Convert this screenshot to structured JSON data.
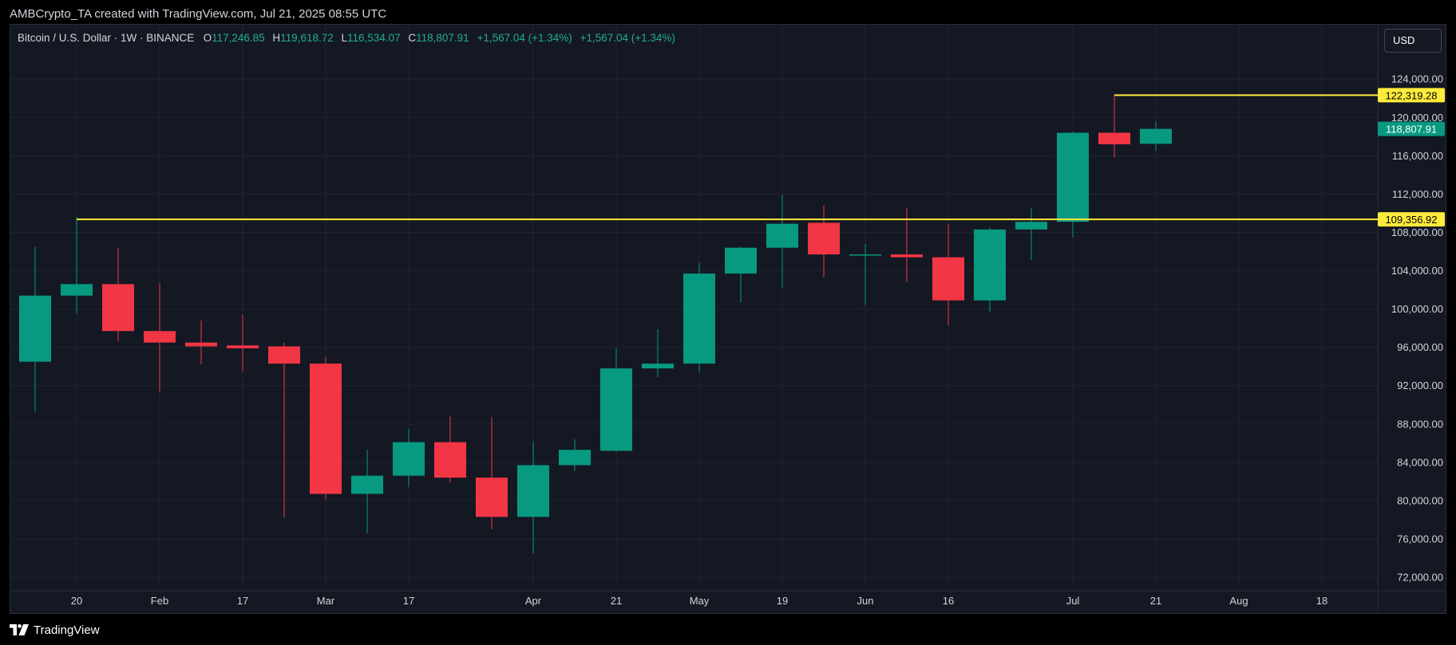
{
  "caption": "AMBCrypto_TA created with TradingView.com, Jul 21, 2025 08:55 UTC",
  "legend": {
    "symbol": "Bitcoin / U.S. Dollar · 1W · BINANCE",
    "o_label": "O",
    "o_value": "117,246.85",
    "h_label": "H",
    "h_value": "119,618.72",
    "l_label": "L",
    "l_value": "116,534.07",
    "c_label": "C",
    "c_value": "118,807.91",
    "change1": "+1,567.04 (+1.34%)",
    "change2": "+1,567.04 (+1.34%)"
  },
  "currency": "USD",
  "brand": "TradingView",
  "colors": {
    "up": "#089981",
    "down": "#f23645",
    "level_line": "#ffeb3b",
    "background": "#141823",
    "grid": "#1f2430",
    "text": "#d1d4dc"
  },
  "chart_data": {
    "type": "candlestick",
    "title": "Bitcoin / U.S. Dollar · 1W · BINANCE",
    "ylim": [
      70000,
      128000
    ],
    "y_ticks": [
      72000,
      76000,
      80000,
      84000,
      88000,
      92000,
      96000,
      100000,
      104000,
      108000,
      112000,
      116000,
      120000,
      124000
    ],
    "y_tick_labels": [
      "72,000.00",
      "76,000.00",
      "80,000.00",
      "84,000.00",
      "88,000.00",
      "92,000.00",
      "96,000.00",
      "100,000.00",
      "104,000.00",
      "108,000.00",
      "112,000.00",
      "116,000.00",
      "120,000.00",
      "124,000.00"
    ],
    "x_ticks": [
      {
        "i": 1,
        "label": "20"
      },
      {
        "i": 3,
        "label": "Feb"
      },
      {
        "i": 5,
        "label": "17"
      },
      {
        "i": 7,
        "label": "Mar"
      },
      {
        "i": 9,
        "label": "17"
      },
      {
        "i": 12,
        "label": "Apr"
      },
      {
        "i": 14,
        "label": "21"
      },
      {
        "i": 16,
        "label": "May"
      },
      {
        "i": 18,
        "label": "19"
      },
      {
        "i": 20,
        "label": "Jun"
      },
      {
        "i": 22,
        "label": "16"
      },
      {
        "i": 25,
        "label": "Jul"
      },
      {
        "i": 27,
        "label": "21"
      },
      {
        "i": 29,
        "label": "Aug"
      },
      {
        "i": 31,
        "label": "18"
      }
    ],
    "grid": true,
    "candles": [
      {
        "o": 94500,
        "h": 106500,
        "l": 89300,
        "c": 101400
      },
      {
        "o": 101400,
        "h": 109600,
        "l": 99500,
        "c": 102600
      },
      {
        "o": 102600,
        "h": 106400,
        "l": 96600,
        "c": 97700
      },
      {
        "o": 97700,
        "h": 102700,
        "l": 91300,
        "c": 96500
      },
      {
        "o": 96500,
        "h": 98800,
        "l": 94200,
        "c": 96100
      },
      {
        "o": 96200,
        "h": 99400,
        "l": 93500,
        "c": 95900
      },
      {
        "o": 96100,
        "h": 96500,
        "l": 78200,
        "c": 94300
      },
      {
        "o": 94300,
        "h": 95000,
        "l": 80100,
        "c": 80700
      },
      {
        "o": 80700,
        "h": 85300,
        "l": 76600,
        "c": 82600
      },
      {
        "o": 82600,
        "h": 87500,
        "l": 81400,
        "c": 86100
      },
      {
        "o": 86100,
        "h": 88800,
        "l": 81900,
        "c": 82400
      },
      {
        "o": 82400,
        "h": 88700,
        "l": 77000,
        "c": 78300
      },
      {
        "o": 78300,
        "h": 86200,
        "l": 74500,
        "c": 83700
      },
      {
        "o": 83700,
        "h": 86400,
        "l": 83100,
        "c": 85300
      },
      {
        "o": 85200,
        "h": 95900,
        "l": 85100,
        "c": 93800
      },
      {
        "o": 93800,
        "h": 97900,
        "l": 92900,
        "c": 94300
      },
      {
        "o": 94300,
        "h": 104800,
        "l": 93400,
        "c": 103700
      },
      {
        "o": 103700,
        "h": 106500,
        "l": 100700,
        "c": 106400
      },
      {
        "o": 106400,
        "h": 111900,
        "l": 102200,
        "c": 108900
      },
      {
        "o": 109000,
        "h": 110800,
        "l": 103300,
        "c": 105700
      },
      {
        "o": 105700,
        "h": 106800,
        "l": 100400,
        "c": 105700
      },
      {
        "o": 105700,
        "h": 110500,
        "l": 102800,
        "c": 105400
      },
      {
        "o": 105400,
        "h": 108900,
        "l": 98300,
        "c": 100900
      },
      {
        "o": 100900,
        "h": 108500,
        "l": 99700,
        "c": 108300
      },
      {
        "o": 108300,
        "h": 110500,
        "l": 105100,
        "c": 109100
      },
      {
        "o": 109100,
        "h": 118500,
        "l": 107500,
        "c": 118400
      },
      {
        "o": 118400,
        "h": 122319.28,
        "l": 115800,
        "c": 117200
      },
      {
        "o": 117246.85,
        "h": 119618.72,
        "l": 116534.07,
        "c": 118807.91
      }
    ],
    "levels": [
      {
        "value": 109356.92,
        "label": "109,356.92",
        "from_index": 1
      },
      {
        "value": 122319.28,
        "label": "122,319.28",
        "from_index": 26
      }
    ],
    "last_price": {
      "value": 118807.91,
      "label": "118,807.91"
    }
  }
}
